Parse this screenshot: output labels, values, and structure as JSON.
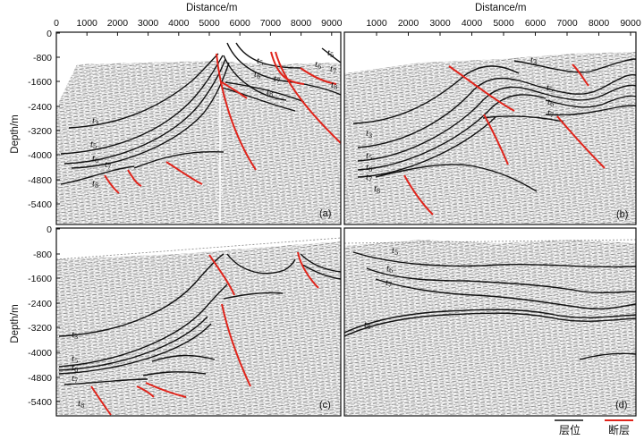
{
  "x_axis": {
    "title": "Distance/m",
    "ticks_left": [
      "0",
      "1000",
      "2000",
      "3000",
      "4000",
      "5000",
      "6000",
      "7000",
      "8000",
      "9000"
    ],
    "ticks_right": [
      "1000",
      "2000",
      "3000",
      "4000",
      "5000",
      "6000",
      "7000",
      "8000",
      "9000"
    ]
  },
  "y_axis": {
    "title": "Depth/m",
    "ticks_top": [
      "0",
      "-800",
      "-1600",
      "-2400",
      "-3200",
      "-4000",
      "-4800",
      "-5400"
    ],
    "ticks_bottom": [
      "0",
      "-800",
      "-1600",
      "-2400",
      "-3200",
      "-4000",
      "-4800",
      "-5400"
    ]
  },
  "panels": [
    {
      "letter": "(a)",
      "horizons": [
        "t3",
        "t5",
        "t6",
        "t7",
        "t8",
        "t5",
        "t6",
        "t7",
        "t8",
        "t5",
        "t6",
        "t7",
        "t8"
      ]
    },
    {
      "letter": "(b)",
      "horizons": [
        "t3",
        "t5",
        "t6",
        "t7",
        "t8",
        "t3",
        "t5",
        "t6",
        "t7"
      ]
    },
    {
      "letter": "(c)",
      "horizons": [
        "t3",
        "t5",
        "t6",
        "t7",
        "t8"
      ]
    },
    {
      "letter": "(d)",
      "horizons": [
        "t5",
        "t6",
        "t7",
        "t8"
      ]
    }
  ],
  "legend": {
    "horizon_label": "层位",
    "fault_label": "断层",
    "horizon_color": "#111111",
    "fault_color": "#e0241b"
  }
}
